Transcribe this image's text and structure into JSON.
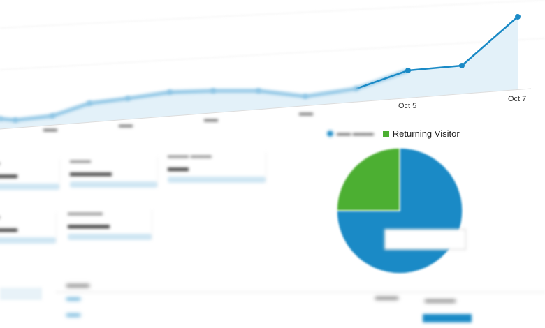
{
  "line_chart": {
    "x_labels": [
      "Oct 5",
      "Oct 7"
    ],
    "line_color": "#1a8ac6",
    "fill_color": "#e3f1f9"
  },
  "pie": {
    "legend": [
      {
        "label": "",
        "color": "#1a8ac6"
      },
      {
        "label": "Returning Visitor",
        "color": "#4caf32"
      }
    ],
    "slices": [
      {
        "segment": "new",
        "percent": 75,
        "color": "#1a8ac6"
      },
      {
        "segment": "returning",
        "percent": 25,
        "color": "#4caf32"
      }
    ]
  },
  "metric_cards": [
    {
      "spark_color": "#cfe6f3"
    },
    {
      "spark_color": "#cfe6f3"
    },
    {
      "spark_color": "#cfe6f3"
    },
    {
      "spark_color": "#cfe6f3"
    },
    {
      "spark_color": "#cfe6f3"
    }
  ]
}
